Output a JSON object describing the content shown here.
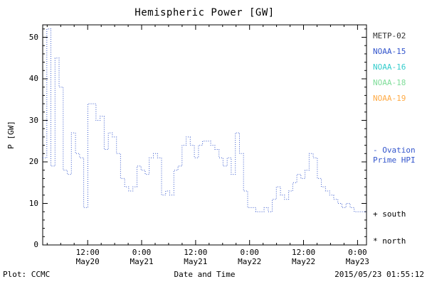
{
  "chart_data": {
    "type": "line",
    "title": "Hemispheric Power [GW]",
    "xlabel": "Date and Time",
    "ylabel": "P [GW]",
    "ylim": [
      0,
      53
    ],
    "x_hours_start": 2,
    "x_hours_end": 74,
    "grid": false,
    "x_ticks": [
      {
        "hour": 12,
        "time": "12:00",
        "date": "May20"
      },
      {
        "hour": 24,
        "time": "0:00",
        "date": "May21"
      },
      {
        "hour": 36,
        "time": "12:00",
        "date": "May21"
      },
      {
        "hour": 48,
        "time": "0:00",
        "date": "May22"
      },
      {
        "hour": 60,
        "time": "12:00",
        "date": "May22"
      },
      {
        "hour": 72,
        "time": "0:00",
        "date": "May23"
      }
    ],
    "y_ticks": [
      0,
      10,
      20,
      30,
      40,
      50
    ],
    "series": [
      {
        "name": "Ovation Prime HPI",
        "color": "#3355cc",
        "line_style": "dotted-step",
        "values": [
          21,
          52,
          19,
          45,
          38,
          18,
          17,
          27,
          22,
          21,
          9,
          34,
          34,
          30,
          31,
          23,
          27,
          26,
          22,
          16,
          14,
          13,
          14,
          19,
          18,
          17,
          21,
          22,
          21,
          12,
          13,
          12,
          18,
          19,
          24,
          26,
          24,
          21,
          24,
          25,
          25,
          24,
          23,
          21,
          19,
          21,
          17,
          27,
          22,
          13,
          9,
          9,
          8,
          8,
          9,
          8,
          11,
          14,
          12,
          11,
          13,
          15,
          17,
          16,
          18,
          22,
          21,
          16,
          14,
          13,
          12,
          11,
          10,
          9,
          10,
          9,
          8,
          8,
          8
        ]
      }
    ]
  },
  "legend": {
    "satellites": [
      {
        "label": "METP-02",
        "color": "#333333"
      },
      {
        "label": "NOAA-15",
        "color": "#3355cc"
      },
      {
        "label": "NOAA-16",
        "color": "#33cccc"
      },
      {
        "label": "NOAA-18",
        "color": "#7fdd99"
      },
      {
        "label": "NOAA-19",
        "color": "#ffaa44"
      }
    ],
    "model_label_line1": "- Ovation",
    "model_label_line2": "Prime HPI",
    "model_color": "#3355cc",
    "south_marker": "+ south",
    "north_marker": "* north"
  },
  "footer": {
    "left": "Plot: CCMC",
    "timestamp": "2015/05/23 01:55:12"
  }
}
